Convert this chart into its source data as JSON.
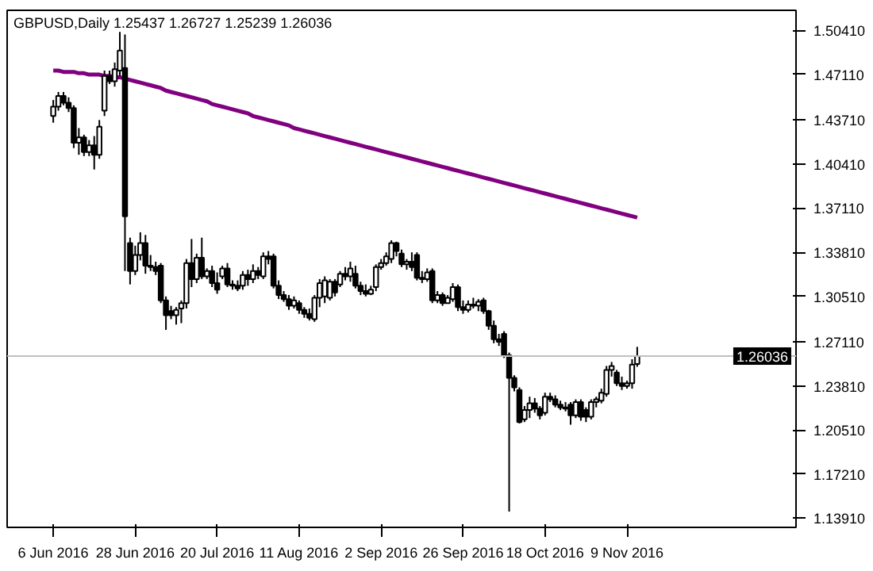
{
  "chart_data": {
    "type": "candlestick",
    "title": "GBPUSD,Daily  1.25437 1.26727 1.25239 1.26036",
    "categories": [
      "6 Jun 2016",
      null,
      null,
      null,
      null,
      null,
      null,
      null,
      null,
      null,
      null,
      null,
      null,
      null,
      null,
      null,
      "28 Jun 2016",
      null,
      null,
      null,
      null,
      null,
      null,
      null,
      null,
      null,
      null,
      null,
      null,
      null,
      null,
      null,
      "20 Jul 2016",
      null,
      null,
      null,
      null,
      null,
      null,
      null,
      null,
      null,
      null,
      null,
      null,
      null,
      null,
      null,
      "11 Aug 2016",
      null,
      null,
      null,
      null,
      null,
      null,
      null,
      null,
      null,
      null,
      null,
      null,
      null,
      null,
      null,
      "2 Sep 2016",
      null,
      null,
      null,
      null,
      null,
      null,
      null,
      null,
      null,
      null,
      null,
      null,
      null,
      null,
      null,
      "26 Sep 2016",
      null,
      null,
      null,
      null,
      null,
      null,
      null,
      null,
      null,
      null,
      null,
      null,
      null,
      null,
      null,
      "18 Oct 2016",
      null,
      null,
      null,
      null,
      null,
      null,
      null,
      null,
      null,
      null,
      null,
      null,
      null,
      null,
      null,
      "9 Nov 2016",
      null,
      null
    ],
    "ohlc": [
      [
        1.44,
        1.452,
        1.435,
        1.447
      ],
      [
        1.447,
        1.458,
        1.444,
        1.455
      ],
      [
        1.455,
        1.458,
        1.448,
        1.45
      ],
      [
        1.45,
        1.454,
        1.443,
        1.446
      ],
      [
        1.446,
        1.448,
        1.416,
        1.42
      ],
      [
        1.42,
        1.431,
        1.411,
        1.424
      ],
      [
        1.424,
        1.426,
        1.41,
        1.413
      ],
      [
        1.413,
        1.422,
        1.41,
        1.418
      ],
      [
        1.418,
        1.425,
        1.4,
        1.411
      ],
      [
        1.411,
        1.437,
        1.408,
        1.432
      ],
      [
        1.444,
        1.474,
        1.44,
        1.47
      ],
      [
        1.47,
        1.474,
        1.464,
        1.466
      ],
      [
        1.466,
        1.48,
        1.462,
        1.475
      ],
      [
        1.474,
        1.503,
        1.47,
        1.489
      ],
      [
        1.476,
        1.501,
        1.324,
        1.365
      ],
      [
        1.345,
        1.349,
        1.314,
        1.324
      ],
      [
        1.324,
        1.343,
        1.321,
        1.336
      ],
      [
        1.336,
        1.353,
        1.332,
        1.345
      ],
      [
        1.345,
        1.351,
        1.322,
        1.328
      ],
      [
        1.328,
        1.336,
        1.324,
        1.327
      ],
      [
        1.327,
        1.331,
        1.321,
        1.324
      ],
      [
        1.328,
        1.33,
        1.3,
        1.302
      ],
      [
        1.302,
        1.305,
        1.28,
        1.291
      ],
      [
        1.294,
        1.298,
        1.288,
        1.291
      ],
      [
        1.291,
        1.297,
        1.284,
        1.295
      ],
      [
        1.296,
        1.302,
        1.285,
        1.3
      ],
      [
        1.3,
        1.333,
        1.296,
        1.33
      ],
      [
        1.33,
        1.348,
        1.312,
        1.318
      ],
      [
        1.318,
        1.337,
        1.315,
        1.334
      ],
      [
        1.334,
        1.349,
        1.318,
        1.32
      ],
      [
        1.32,
        1.326,
        1.318,
        1.324
      ],
      [
        1.324,
        1.328,
        1.312,
        1.315
      ],
      [
        1.315,
        1.323,
        1.307,
        1.31
      ],
      [
        1.32,
        1.328,
        1.318,
        1.326
      ],
      [
        1.326,
        1.33,
        1.312,
        1.314
      ],
      [
        1.314,
        1.317,
        1.31,
        1.313
      ],
      [
        1.313,
        1.317,
        1.309,
        1.311
      ],
      [
        1.313,
        1.324,
        1.31,
        1.321
      ],
      [
        1.321,
        1.325,
        1.313,
        1.318
      ],
      [
        1.318,
        1.329,
        1.315,
        1.324
      ],
      [
        1.324,
        1.327,
        1.318,
        1.321
      ],
      [
        1.32,
        1.338,
        1.318,
        1.335
      ],
      [
        1.335,
        1.339,
        1.329,
        1.333
      ],
      [
        1.335,
        1.337,
        1.311,
        1.313
      ],
      [
        1.313,
        1.317,
        1.303,
        1.306
      ],
      [
        1.306,
        1.309,
        1.301,
        1.303
      ],
      [
        1.303,
        1.306,
        1.295,
        1.298
      ],
      [
        1.298,
        1.305,
        1.296,
        1.302
      ],
      [
        1.3,
        1.302,
        1.292,
        1.295
      ],
      [
        1.295,
        1.297,
        1.289,
        1.292
      ],
      [
        1.292,
        1.296,
        1.287,
        1.289
      ],
      [
        1.288,
        1.306,
        1.286,
        1.304
      ],
      [
        1.304,
        1.318,
        1.297,
        1.315
      ],
      [
        1.305,
        1.32,
        1.3,
        1.317
      ],
      [
        1.304,
        1.318,
        1.302,
        1.316
      ],
      [
        1.316,
        1.318,
        1.305,
        1.308
      ],
      [
        1.314,
        1.324,
        1.312,
        1.322
      ],
      [
        1.322,
        1.327,
        1.317,
        1.32
      ],
      [
        1.32,
        1.331,
        1.316,
        1.326
      ],
      [
        1.322,
        1.328,
        1.311,
        1.313
      ],
      [
        1.313,
        1.316,
        1.306,
        1.309
      ],
      [
        1.309,
        1.314,
        1.305,
        1.307
      ],
      [
        1.307,
        1.313,
        1.306,
        1.31
      ],
      [
        1.312,
        1.329,
        1.309,
        1.327
      ],
      [
        1.327,
        1.333,
        1.325,
        1.33
      ],
      [
        1.33,
        1.338,
        1.328,
        1.335
      ],
      [
        1.333,
        1.347,
        1.33,
        1.345
      ],
      [
        1.345,
        1.346,
        1.335,
        1.339
      ],
      [
        1.337,
        1.34,
        1.327,
        1.329
      ],
      [
        1.329,
        1.333,
        1.325,
        1.331
      ],
      [
        1.331,
        1.338,
        1.324,
        1.327
      ],
      [
        1.336,
        1.338,
        1.317,
        1.319
      ],
      [
        1.319,
        1.324,
        1.315,
        1.318
      ],
      [
        1.318,
        1.326,
        1.316,
        1.323
      ],
      [
        1.324,
        1.326,
        1.3,
        1.302
      ],
      [
        1.302,
        1.309,
        1.3,
        1.306
      ],
      [
        1.306,
        1.308,
        1.298,
        1.3
      ],
      [
        1.3,
        1.306,
        1.3,
        1.304
      ],
      [
        1.303,
        1.315,
        1.301,
        1.312
      ],
      [
        1.312,
        1.314,
        1.294,
        1.297
      ],
      [
        1.297,
        1.302,
        1.292,
        1.295
      ],
      [
        1.295,
        1.302,
        1.293,
        1.299
      ],
      [
        1.299,
        1.304,
        1.296,
        1.298
      ],
      [
        1.298,
        1.303,
        1.294,
        1.301
      ],
      [
        1.302,
        1.304,
        1.292,
        1.294
      ],
      [
        1.294,
        1.295,
        1.28,
        1.283
      ],
      [
        1.283,
        1.287,
        1.27,
        1.273
      ],
      [
        1.273,
        1.277,
        1.268,
        1.271
      ],
      [
        1.277,
        1.279,
        1.259,
        1.261
      ],
      [
        1.261,
        1.263,
        1.144,
        1.244
      ],
      [
        1.244,
        1.246,
        1.234,
        1.237
      ],
      [
        1.235,
        1.237,
        1.21,
        1.211
      ],
      [
        1.213,
        1.223,
        1.211,
        1.22
      ],
      [
        1.22,
        1.23,
        1.214,
        1.225
      ],
      [
        1.225,
        1.229,
        1.218,
        1.221
      ],
      [
        1.221,
        1.223,
        1.213,
        1.216
      ],
      [
        1.218,
        1.233,
        1.216,
        1.23
      ],
      [
        1.23,
        1.233,
        1.226,
        1.228
      ],
      [
        1.228,
        1.231,
        1.222,
        1.224
      ],
      [
        1.224,
        1.227,
        1.22,
        1.222
      ],
      [
        1.222,
        1.226,
        1.219,
        1.221
      ],
      [
        1.224,
        1.226,
        1.209,
        1.216
      ],
      [
        1.216,
        1.228,
        1.214,
        1.226
      ],
      [
        1.226,
        1.228,
        1.212,
        1.215
      ],
      [
        1.22,
        1.222,
        1.211,
        1.215
      ],
      [
        1.215,
        1.228,
        1.213,
        1.226
      ],
      [
        1.226,
        1.23,
        1.222,
        1.228
      ],
      [
        1.227,
        1.236,
        1.225,
        1.233
      ],
      [
        1.232,
        1.253,
        1.23,
        1.25
      ],
      [
        1.25,
        1.256,
        1.245,
        1.253
      ],
      [
        1.248,
        1.25,
        1.238,
        1.24
      ],
      [
        1.24,
        1.245,
        1.235,
        1.238
      ],
      [
        1.238,
        1.242,
        1.236,
        1.24
      ],
      [
        1.24,
        1.258,
        1.236,
        1.254
      ],
      [
        1.25437,
        1.26727,
        1.25239,
        1.26036
      ]
    ],
    "series": [
      {
        "type": "line",
        "color": "#800080",
        "values": [
          1.474,
          1.474,
          1.473,
          1.473,
          1.473,
          1.472,
          1.472,
          1.471,
          1.471,
          1.471,
          1.47,
          1.47,
          1.469,
          1.469,
          1.468,
          1.467,
          1.466,
          1.465,
          1.464,
          1.463,
          1.462,
          1.461,
          1.459,
          1.458,
          1.457,
          1.456,
          1.455,
          1.454,
          1.453,
          1.452,
          1.451,
          1.449,
          1.448,
          1.447,
          1.446,
          1.445,
          1.444,
          1.443,
          1.442,
          1.44,
          1.439,
          1.438,
          1.437,
          1.436,
          1.435,
          1.434,
          1.433,
          1.431,
          1.43,
          1.429,
          1.428,
          1.427,
          1.426,
          1.425,
          1.424,
          1.423,
          1.422,
          1.421,
          1.42,
          1.419,
          1.418,
          1.417,
          1.416,
          1.415,
          1.414,
          1.413,
          1.412,
          1.411,
          1.41,
          1.409,
          1.408,
          1.407,
          1.406,
          1.405,
          1.404,
          1.403,
          1.402,
          1.401,
          1.4,
          1.399,
          1.398,
          1.397,
          1.396,
          1.395,
          1.394,
          1.393,
          1.392,
          1.391,
          1.39,
          1.389,
          1.388,
          1.387,
          1.386,
          1.385,
          1.384,
          1.383,
          1.382,
          1.381,
          1.38,
          1.379,
          1.378,
          1.377,
          1.376,
          1.375,
          1.374,
          1.373,
          1.372,
          1.371,
          1.37,
          1.369,
          1.368,
          1.367,
          1.366,
          1.365,
          1.364
        ]
      }
    ],
    "ylim": [
      1.1322,
      1.5191
    ],
    "yticks": [
      {
        "value": 1.5041,
        "label": "1.50410"
      },
      {
        "value": 1.4711,
        "label": "1.47110"
      },
      {
        "value": 1.4371,
        "label": "1.43710"
      },
      {
        "value": 1.4041,
        "label": "1.40410"
      },
      {
        "value": 1.3711,
        "label": "1.37110"
      },
      {
        "value": 1.3381,
        "label": "1.33810"
      },
      {
        "value": 1.3051,
        "label": "1.30510"
      },
      {
        "value": 1.2711,
        "label": "1.27110"
      },
      {
        "value": 1.2381,
        "label": "1.23810"
      },
      {
        "value": 1.2051,
        "label": "1.20510"
      },
      {
        "value": 1.1721,
        "label": "1.17210"
      },
      {
        "value": 1.1391,
        "label": "1.13910"
      }
    ],
    "ref_lines": [
      {
        "axis": "y",
        "value": 1.26036,
        "label": "1.26036",
        "color": "#c0c0c0"
      }
    ],
    "grid": false
  }
}
